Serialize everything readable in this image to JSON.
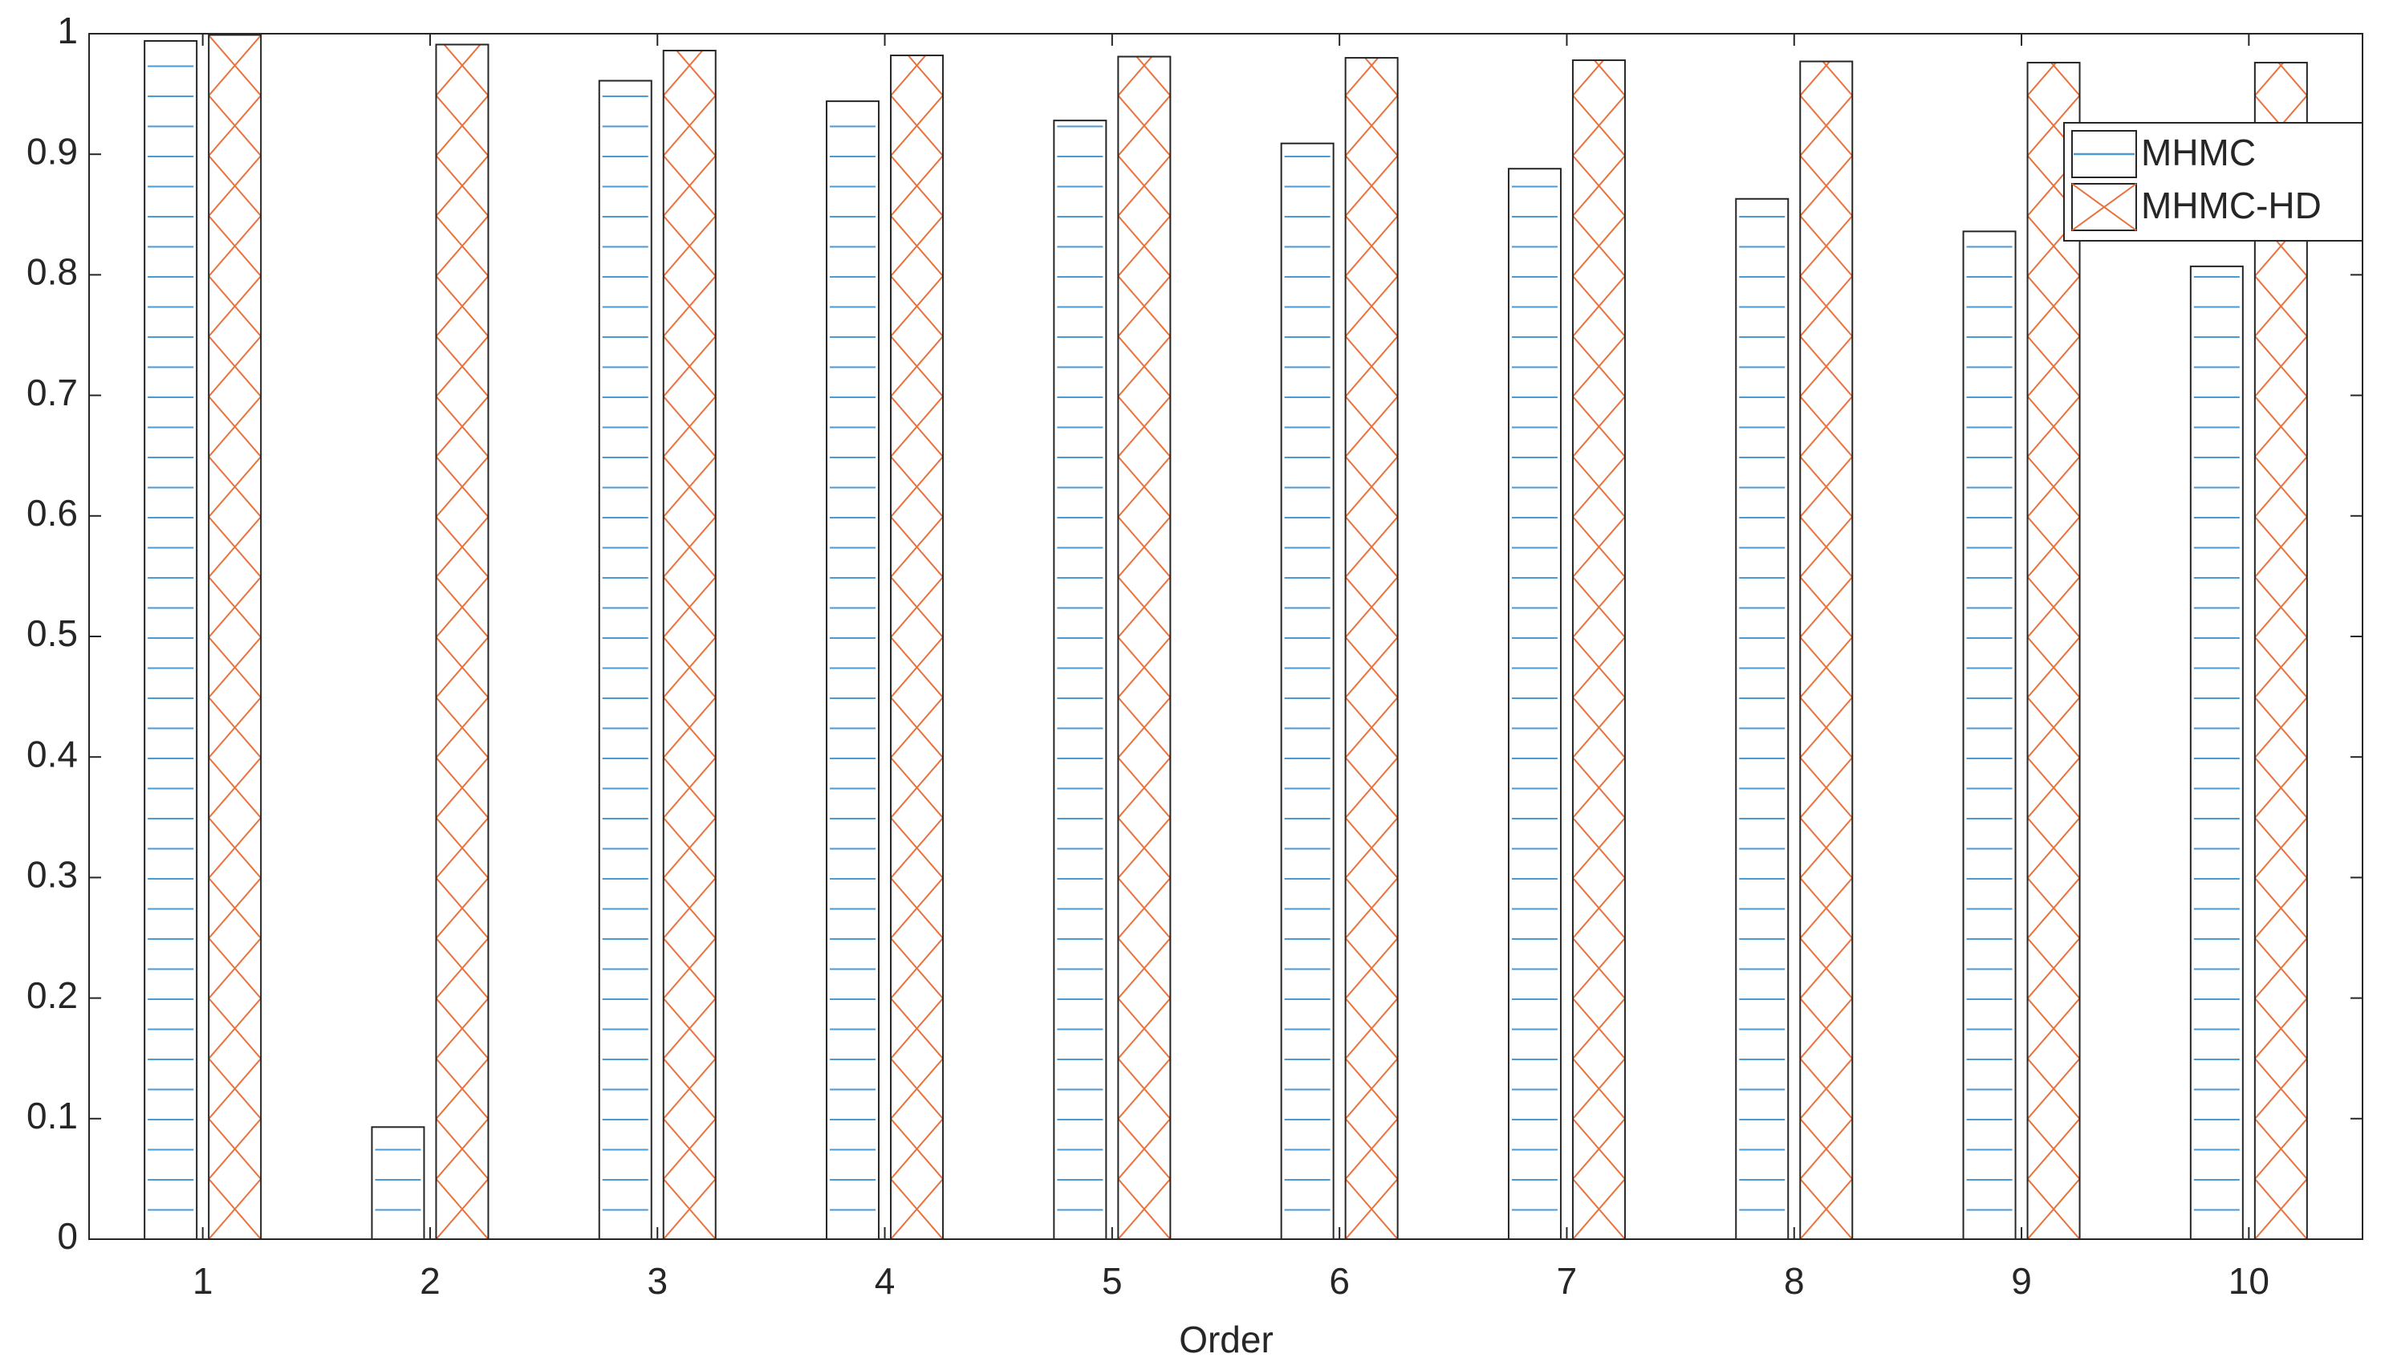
{
  "chart_data": {
    "type": "bar",
    "xlabel": "Order",
    "categories": [
      1,
      2,
      3,
      4,
      5,
      6,
      7,
      8,
      9,
      10
    ],
    "series": [
      {
        "name": "MHMC",
        "color": "#4a9ad6",
        "values": [
          0.994,
          0.093,
          0.961,
          0.944,
          0.928,
          0.909,
          0.888,
          0.863,
          0.836,
          0.807
        ]
      },
      {
        "name": "MHMC-HD",
        "color": "#e8703a",
        "values": [
          0.999,
          0.991,
          0.986,
          0.982,
          0.981,
          0.98,
          0.978,
          0.977,
          0.976,
          0.976
        ]
      }
    ],
    "ylim": [
      0,
      1
    ],
    "yticks": [
      0,
      0.1,
      0.2,
      0.3,
      0.4,
      0.5,
      0.6,
      0.7,
      0.8,
      0.9,
      1
    ],
    "legend": "upper right"
  }
}
